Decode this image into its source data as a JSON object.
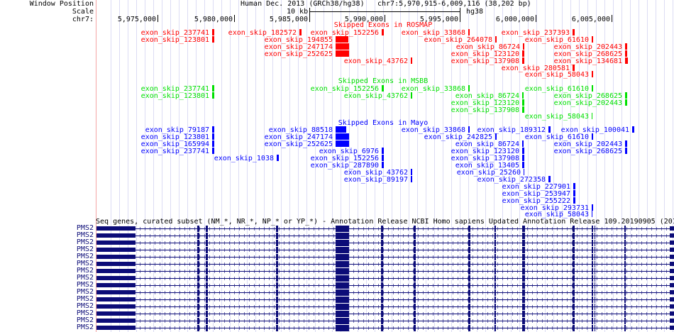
{
  "header": {
    "assembly": "Human Dec. 2013 (GRCh38/hg38)",
    "position": "chr7:5,970,915-6,009,116 (38,202 bp)",
    "scale_label": "10 kb",
    "scale_db": "hg38"
  },
  "side_labels": {
    "window_position": "Window Position",
    "scale": "Scale",
    "chrom": "chr7:"
  },
  "ruler": [
    "5,975,000",
    "5,980,000",
    "5,985,000",
    "5,990,000",
    "5,995,000",
    "6,000,000",
    "6,005,000"
  ],
  "tracks": {
    "rosmap": {
      "title": "Skipped Exons in ROSMAP",
      "color": "#ff0000",
      "items": [
        "exon_skip_237741",
        "exon_skip_182572",
        "exon_skip_152256",
        "exon_skip_33868",
        "exon_skip_237393",
        "exon_skip_123801",
        "exon_skip_194855",
        "exon_skip_264078",
        "exon_skip_61610",
        "exon_skip_247174",
        "exon_skip_86724",
        "exon_skip_202443",
        "exon_skip_252625",
        "exon_skip_123120",
        "exon_skip_268625",
        "exon_skip_43762",
        "exon_skip_137908",
        "exon_skip_134681",
        "exon_skip_280581",
        "exon_skip_58043"
      ]
    },
    "msbb": {
      "title": "Skipped Exons in MSBB",
      "color": "#00e000",
      "items": [
        "exon_skip_237741",
        "exon_skip_152256",
        "exon_skip_33868",
        "exon_skip_61610",
        "exon_skip_123801",
        "exon_skip_43762",
        "exon_skip_86724",
        "exon_skip_268625",
        "exon_skip_123120",
        "exon_skip_202443",
        "exon_skip_137908",
        "exon_skip_58043"
      ]
    },
    "mayo": {
      "title": "Skipped Exons in Mayo",
      "color": "#0000ff",
      "items": [
        "exon_skip_79187",
        "exon_skip_88518",
        "exon_skip_33868",
        "exon_skip_189312",
        "exon_skip_100041",
        "exon_skip_123801",
        "exon_skip_247174",
        "exon_skip_242825",
        "exon_skip_61610",
        "exon_skip_165994",
        "exon_skip_252625",
        "exon_skip_86724",
        "exon_skip_202443",
        "exon_skip_237741",
        "exon_skip_6976",
        "exon_skip_123120",
        "exon_skip_268625",
        "exon_skip_1038",
        "exon_skip_152256",
        "exon_skip_137908",
        "exon_skip_287890",
        "exon_skip_13405",
        "exon_skip_43762",
        "exon_skip_25260",
        "exon_skip_89197",
        "exon_skip_272358",
        "exon_skip_227901",
        "exon_skip_253947",
        "exon_skip_255222",
        "exon_skip_293731",
        "exon_skip_58043"
      ]
    }
  },
  "genes": {
    "title": "Seq genes, curated subset (NM_*, NR_*, NP_* or YP_*) - Annotation Release NCBI Homo sapiens Updated Annotation Release 109.20190905 (201",
    "color": "#0c0c78",
    "rows": [
      "PMS2",
      "PMS2",
      "PMS2",
      "PMS2",
      "PMS2",
      "PMS2",
      "PMS2",
      "PMS2",
      "PMS2",
      "PMS2",
      "PMS2",
      "PMS2",
      "PMS2",
      "PMS2",
      "PMS2"
    ]
  }
}
